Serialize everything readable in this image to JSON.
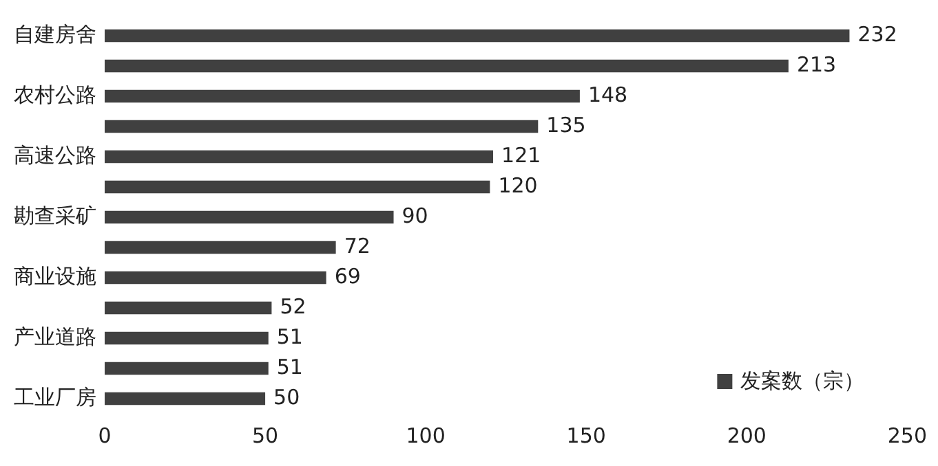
{
  "chart_data": {
    "type": "bar",
    "orientation": "horizontal",
    "categories": [
      "自建房舍",
      null,
      "农村公路",
      null,
      "高速公路",
      null,
      "勘查采矿",
      null,
      "商业设施",
      null,
      "产业道路",
      null,
      "工业厂房"
    ],
    "series": [
      {
        "name": "发案数（宗）",
        "color": "#404040",
        "values": [
          232,
          213,
          148,
          135,
          121,
          120,
          90,
          72,
          69,
          52,
          51,
          51,
          50
        ]
      }
    ],
    "xlim": [
      0,
      250
    ],
    "xticks": [
      0,
      50,
      100,
      150,
      200,
      250
    ],
    "grid": false,
    "legend": "bottom right",
    "data_labels": true
  }
}
